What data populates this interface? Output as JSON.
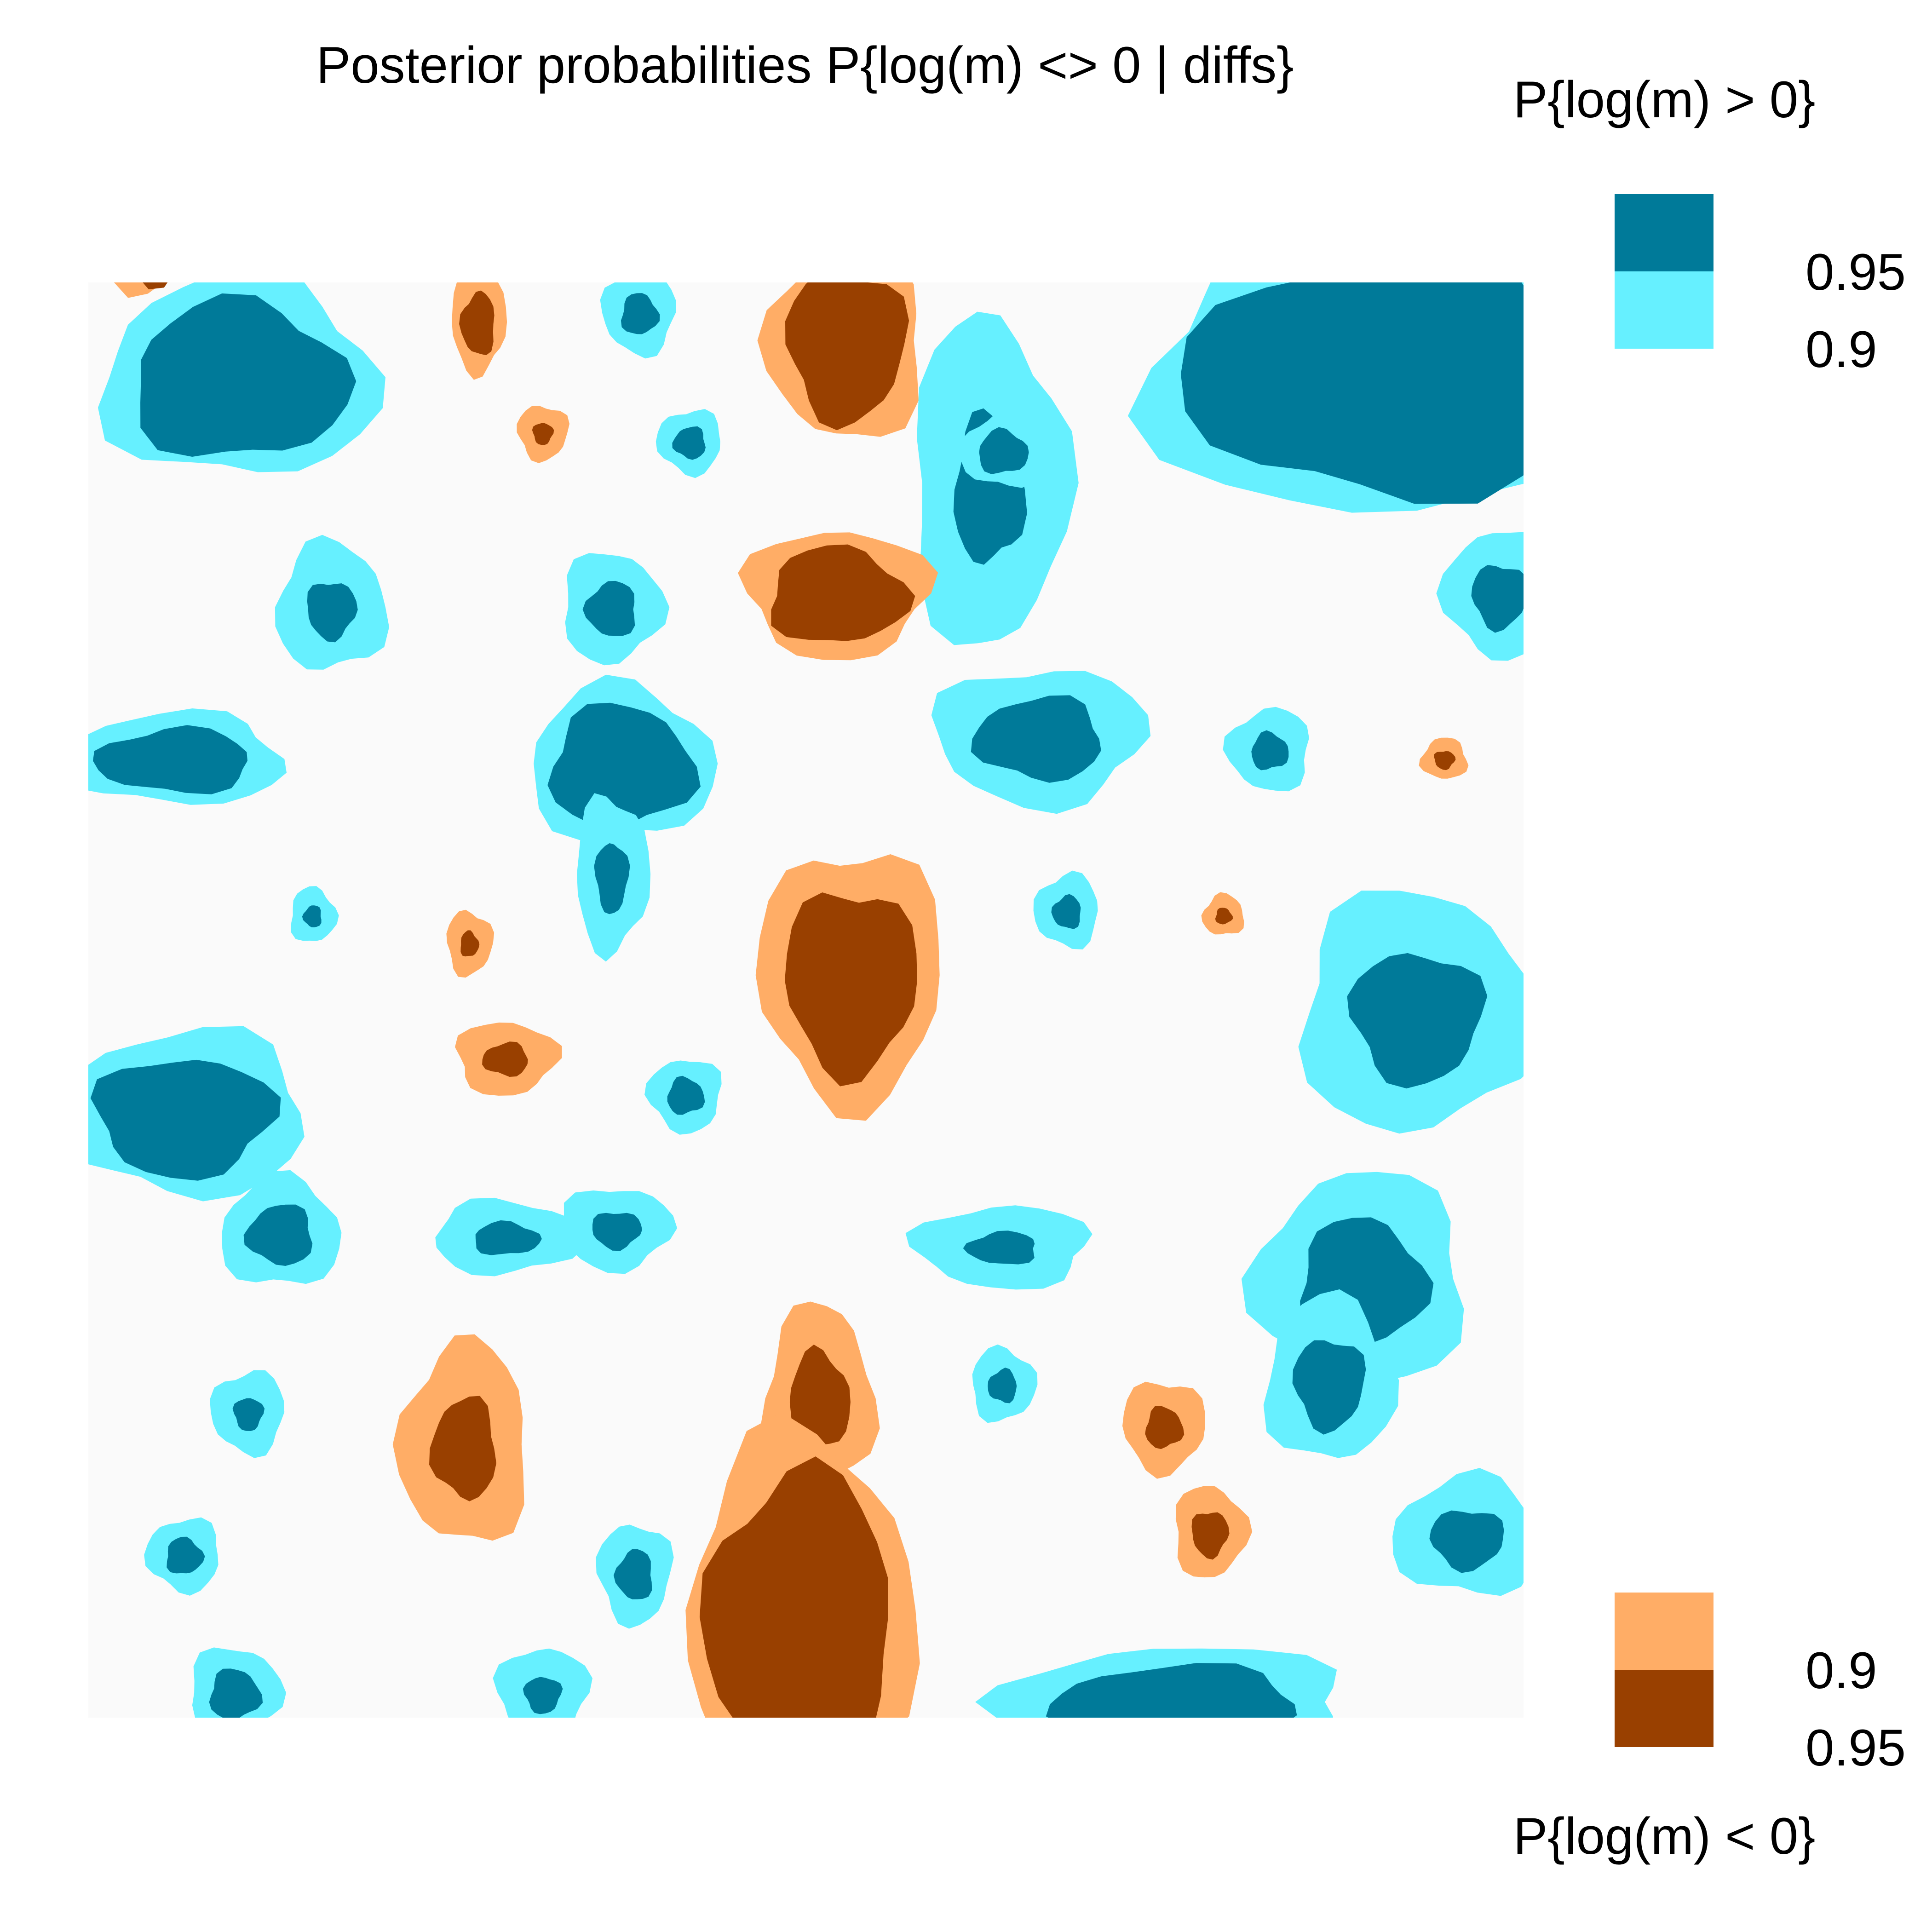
{
  "chart_data": {
    "type": "heatmap",
    "title": "Posterior probabilities P{log(m) <> 0 | diffs}",
    "xlabel": "",
    "ylabel": "",
    "grid": false,
    "legend_position": "right",
    "colors": {
      "background": "#fafafa",
      "pos_90": "#66f0ff",
      "pos_95": "#007a99",
      "neg_90": "#ffad66",
      "neg_95": "#994000"
    },
    "legend": {
      "upper_title": "P{log(m) > 0}",
      "lower_title": "P{log(m) < 0}",
      "upper_entries": [
        {
          "label": "0.95",
          "level": 0.95,
          "color": "#007a99"
        },
        {
          "label": "0.9",
          "level": 0.9,
          "color": "#66f0ff"
        }
      ],
      "lower_entries": [
        {
          "label": "0.9",
          "level": 0.9,
          "color": "#ffad66"
        },
        {
          "label": "0.95",
          "level": 0.95,
          "color": "#994000"
        }
      ]
    },
    "levels": [
      0.9,
      0.95
    ],
    "categories_of_regions": [
      "positive",
      "negative"
    ]
  }
}
